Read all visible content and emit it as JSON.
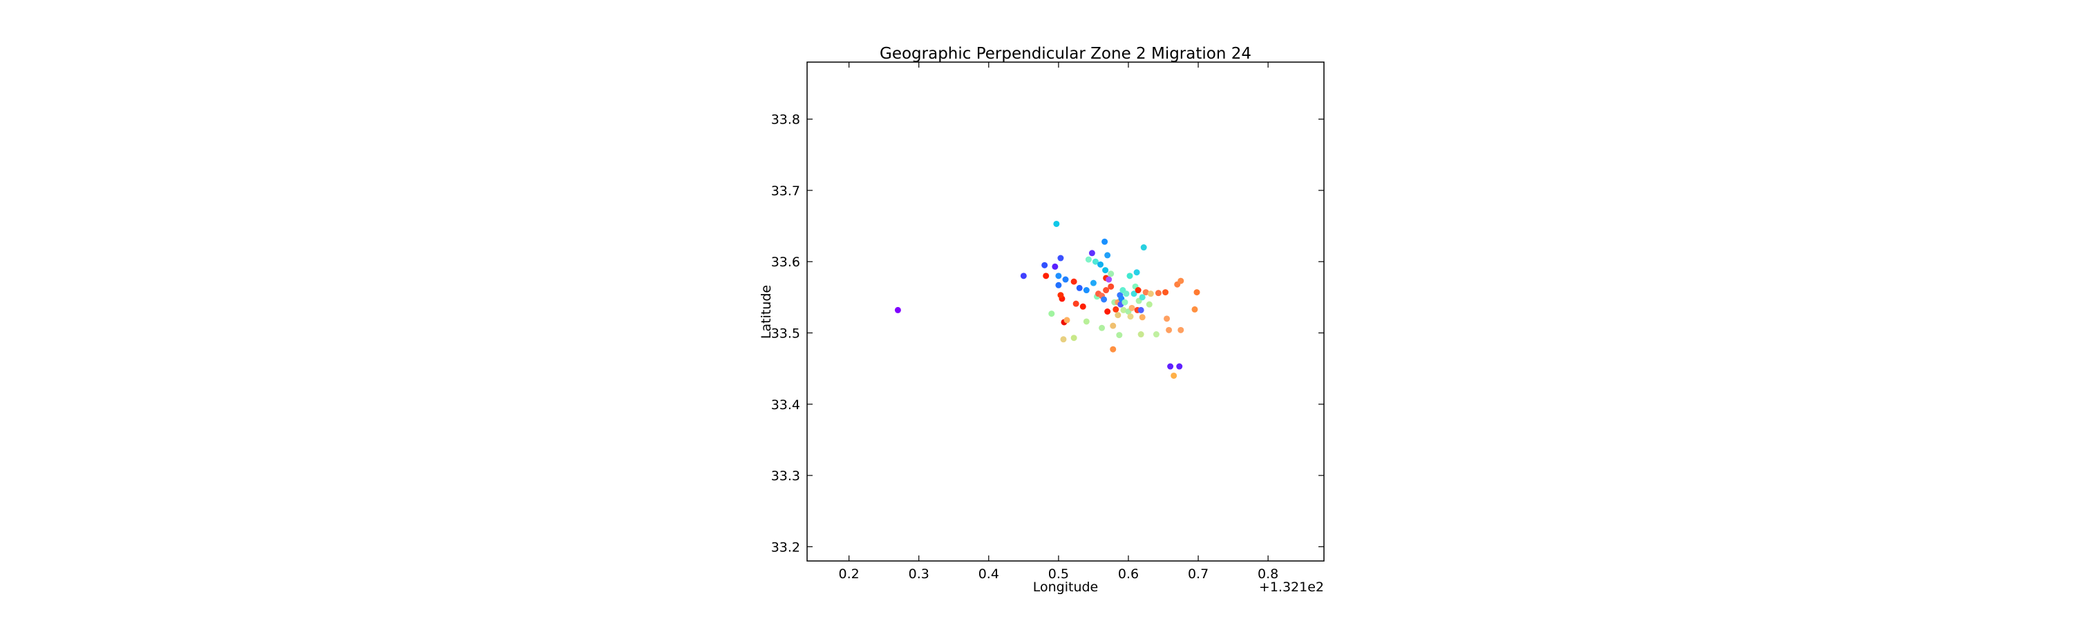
{
  "chart_data": {
    "type": "scatter",
    "title": "Geographic Perpendicular Zone 2 Migration 24",
    "xlabel": "Longitude",
    "ylabel": "Latitude",
    "offset_label": "+1.321e2",
    "xlim": [
      0.14,
      0.88
    ],
    "ylim": [
      33.18,
      33.88
    ],
    "x_ticks": [
      0.2,
      0.3,
      0.4,
      0.5,
      0.6,
      0.7,
      0.8
    ],
    "x_tick_labels": [
      "0.2",
      "0.3",
      "0.4",
      "0.5",
      "0.6",
      "0.7",
      "0.8"
    ],
    "y_ticks": [
      33.2,
      33.3,
      33.4,
      33.5,
      33.6,
      33.7,
      33.8
    ],
    "y_tick_labels": [
      "33.2",
      "33.3",
      "33.4",
      "33.5",
      "33.6",
      "33.7",
      "33.8"
    ],
    "grid": false,
    "legend": "none",
    "points": [
      {
        "x": 0.27,
        "y": 33.532,
        "color": "#7f00ff"
      },
      {
        "x": 0.45,
        "y": 33.58,
        "color": "#4040ff"
      },
      {
        "x": 0.48,
        "y": 33.595,
        "color": "#3050ff"
      },
      {
        "x": 0.482,
        "y": 33.58,
        "color": "#ff2000"
      },
      {
        "x": 0.495,
        "y": 33.593,
        "color": "#5a20ff"
      },
      {
        "x": 0.497,
        "y": 33.653,
        "color": "#10c8e8"
      },
      {
        "x": 0.5,
        "y": 33.58,
        "color": "#1e90ff"
      },
      {
        "x": 0.503,
        "y": 33.605,
        "color": "#3a50ff"
      },
      {
        "x": 0.5,
        "y": 33.567,
        "color": "#2070ff"
      },
      {
        "x": 0.505,
        "y": 33.548,
        "color": "#ff1a00"
      },
      {
        "x": 0.503,
        "y": 33.553,
        "color": "#ff3000"
      },
      {
        "x": 0.51,
        "y": 33.575,
        "color": "#2080ff"
      },
      {
        "x": 0.508,
        "y": 33.515,
        "color": "#ee1000"
      },
      {
        "x": 0.512,
        "y": 33.518,
        "color": "#ffb060"
      },
      {
        "x": 0.507,
        "y": 33.491,
        "color": "#e8d080"
      },
      {
        "x": 0.49,
        "y": 33.527,
        "color": "#a0f4a0"
      },
      {
        "x": 0.522,
        "y": 33.493,
        "color": "#c8e888"
      },
      {
        "x": 0.522,
        "y": 33.572,
        "color": "#ff2a10"
      },
      {
        "x": 0.525,
        "y": 33.541,
        "color": "#ff4020"
      },
      {
        "x": 0.53,
        "y": 33.563,
        "color": "#2a60ff"
      },
      {
        "x": 0.535,
        "y": 33.537,
        "color": "#ff2000"
      },
      {
        "x": 0.54,
        "y": 33.56,
        "color": "#1890ff"
      },
      {
        "x": 0.54,
        "y": 33.516,
        "color": "#b8f098"
      },
      {
        "x": 0.543,
        "y": 33.603,
        "color": "#7ff4c8"
      },
      {
        "x": 0.548,
        "y": 33.612,
        "color": "#6030ff"
      },
      {
        "x": 0.55,
        "y": 33.57,
        "color": "#20a8f8"
      },
      {
        "x": 0.553,
        "y": 33.6,
        "color": "#50e8d8"
      },
      {
        "x": 0.555,
        "y": 33.551,
        "color": "#88f8b8"
      },
      {
        "x": 0.557,
        "y": 33.555,
        "color": "#ff6040"
      },
      {
        "x": 0.56,
        "y": 33.596,
        "color": "#10b0f0"
      },
      {
        "x": 0.562,
        "y": 33.507,
        "color": "#b0f0a0"
      },
      {
        "x": 0.562,
        "y": 33.552,
        "color": "#ff7050"
      },
      {
        "x": 0.565,
        "y": 33.547,
        "color": "#3080ff"
      },
      {
        "x": 0.566,
        "y": 33.628,
        "color": "#1890ff"
      },
      {
        "x": 0.567,
        "y": 33.588,
        "color": "#0cc0e8"
      },
      {
        "x": 0.568,
        "y": 33.577,
        "color": "#ff2a00"
      },
      {
        "x": 0.568,
        "y": 33.56,
        "color": "#ff5030"
      },
      {
        "x": 0.57,
        "y": 33.53,
        "color": "#ff1a00"
      },
      {
        "x": 0.57,
        "y": 33.609,
        "color": "#20a0f8"
      },
      {
        "x": 0.572,
        "y": 33.575,
        "color": "#a850ff"
      },
      {
        "x": 0.575,
        "y": 33.583,
        "color": "#a0f0b0"
      },
      {
        "x": 0.575,
        "y": 33.565,
        "color": "#ff4a28"
      },
      {
        "x": 0.578,
        "y": 33.477,
        "color": "#ff9040"
      },
      {
        "x": 0.578,
        "y": 33.51,
        "color": "#f0c070"
      },
      {
        "x": 0.58,
        "y": 33.543,
        "color": "#a8f0a8"
      },
      {
        "x": 0.582,
        "y": 33.533,
        "color": "#ff3a10"
      },
      {
        "x": 0.585,
        "y": 33.543,
        "color": "#ffa060"
      },
      {
        "x": 0.585,
        "y": 33.525,
        "color": "#e8c878"
      },
      {
        "x": 0.587,
        "y": 33.497,
        "color": "#b0f0a0"
      },
      {
        "x": 0.588,
        "y": 33.553,
        "color": "#3878ff"
      },
      {
        "x": 0.589,
        "y": 33.54,
        "color": "#5060ff"
      },
      {
        "x": 0.59,
        "y": 33.548,
        "color": "#2088ff"
      },
      {
        "x": 0.592,
        "y": 33.56,
        "color": "#60f0d0"
      },
      {
        "x": 0.593,
        "y": 33.532,
        "color": "#c0f098"
      },
      {
        "x": 0.595,
        "y": 33.543,
        "color": "#90f8c0"
      },
      {
        "x": 0.597,
        "y": 33.555,
        "color": "#70f0d0"
      },
      {
        "x": 0.6,
        "y": 33.53,
        "color": "#a8f0a8"
      },
      {
        "x": 0.602,
        "y": 33.58,
        "color": "#40e8d0"
      },
      {
        "x": 0.603,
        "y": 33.523,
        "color": "#e8d888"
      },
      {
        "x": 0.605,
        "y": 33.535,
        "color": "#ffb070"
      },
      {
        "x": 0.608,
        "y": 33.555,
        "color": "#40e0e0"
      },
      {
        "x": 0.61,
        "y": 33.565,
        "color": "#80f8c0"
      },
      {
        "x": 0.612,
        "y": 33.585,
        "color": "#28d0e8"
      },
      {
        "x": 0.613,
        "y": 33.532,
        "color": "#ff4020"
      },
      {
        "x": 0.614,
        "y": 33.56,
        "color": "#ff2a00"
      },
      {
        "x": 0.615,
        "y": 33.545,
        "color": "#a8f0a8"
      },
      {
        "x": 0.618,
        "y": 33.532,
        "color": "#5060ff"
      },
      {
        "x": 0.618,
        "y": 33.498,
        "color": "#c8e890"
      },
      {
        "x": 0.62,
        "y": 33.522,
        "color": "#ffb060"
      },
      {
        "x": 0.62,
        "y": 33.55,
        "color": "#50e8d8"
      },
      {
        "x": 0.622,
        "y": 33.62,
        "color": "#28d0e0"
      },
      {
        "x": 0.625,
        "y": 33.557,
        "color": "#ff8050"
      },
      {
        "x": 0.63,
        "y": 33.54,
        "color": "#b8f098"
      },
      {
        "x": 0.632,
        "y": 33.555,
        "color": "#f0c878"
      },
      {
        "x": 0.64,
        "y": 33.498,
        "color": "#c0f0a0"
      },
      {
        "x": 0.643,
        "y": 33.556,
        "color": "#ff7040"
      },
      {
        "x": 0.653,
        "y": 33.557,
        "color": "#ff5a20"
      },
      {
        "x": 0.655,
        "y": 33.52,
        "color": "#ffa060"
      },
      {
        "x": 0.658,
        "y": 33.504,
        "color": "#ffa060"
      },
      {
        "x": 0.66,
        "y": 33.453,
        "color": "#6020ff"
      },
      {
        "x": 0.665,
        "y": 33.44,
        "color": "#ffb048"
      },
      {
        "x": 0.67,
        "y": 33.568,
        "color": "#ff8040"
      },
      {
        "x": 0.673,
        "y": 33.453,
        "color": "#6020ff"
      },
      {
        "x": 0.675,
        "y": 33.573,
        "color": "#ff8c48"
      },
      {
        "x": 0.675,
        "y": 33.504,
        "color": "#ffa060"
      },
      {
        "x": 0.695,
        "y": 33.533,
        "color": "#ff9040"
      },
      {
        "x": 0.698,
        "y": 33.557,
        "color": "#ff7a30"
      }
    ]
  }
}
